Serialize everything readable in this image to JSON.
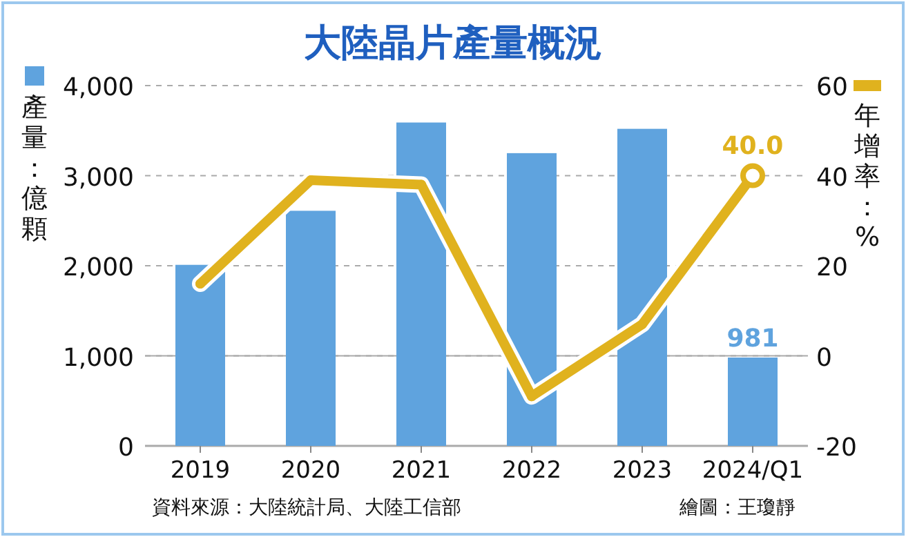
{
  "chart_data": {
    "type": "bar",
    "title": "大陸晶片產量概況",
    "ylabel": "產量：億顆",
    "y2label": "年增率：%",
    "categories": [
      "2019",
      "2020",
      "2021",
      "2022",
      "2023",
      "2024/Q1"
    ],
    "series": [
      {
        "color": "#5fa3de",
        "values": [
          2010,
          2610,
          3590,
          3250,
          3520,
          981
        ],
        "value_labels": [
          null,
          null,
          null,
          null,
          null,
          "981"
        ]
      },
      {
        "type": "line",
        "axis": "y2",
        "color": "#e0b21e",
        "marker": "circle",
        "values": [
          16,
          39,
          38,
          -9,
          7,
          40.0
        ],
        "value_labels": [
          null,
          null,
          null,
          null,
          null,
          "40.0"
        ]
      }
    ],
    "ylim": [
      0,
      4000
    ],
    "yticks": [
      {
        "value": 0,
        "label": "0"
      },
      {
        "value": 1000,
        "label": "1,000"
      },
      {
        "value": 2000,
        "label": "2,000"
      },
      {
        "value": 3000,
        "label": "3,000"
      },
      {
        "value": 4000,
        "label": "4,000"
      }
    ],
    "y2lim": [
      -20,
      60
    ],
    "y2ticks": [
      -20,
      0,
      20,
      40,
      60
    ],
    "grid": "y",
    "annotations": [
      "資料來源：大陸統計局、大陸工信部",
      "繪圖：王瓊靜"
    ]
  }
}
